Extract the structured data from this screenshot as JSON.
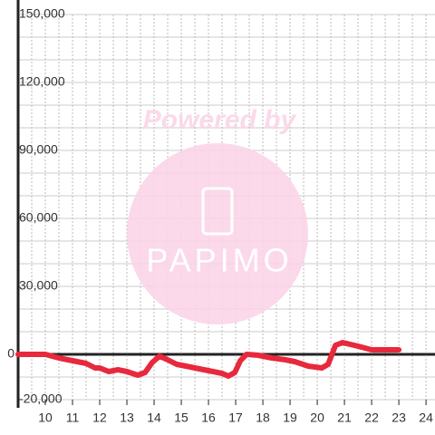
{
  "chart_data": {
    "type": "line",
    "annotations": [
      "Powered by",
      "PAPIMO"
    ],
    "x": [
      9,
      10,
      10.5,
      11,
      11.5,
      11.83,
      12,
      12.33,
      12.67,
      13,
      13.4,
      13.67,
      13.93,
      14.2,
      14.5,
      14.83,
      15.17,
      15.5,
      15.83,
      16.17,
      16.5,
      16.73,
      16.97,
      17.17,
      17.4,
      17.83,
      18.33,
      18.83,
      19.17,
      19.67,
      20.17,
      20.4,
      20.67,
      20.93,
      21.5,
      22,
      23
    ],
    "series": [
      {
        "color": "#e8283c",
        "values": [
          0,
          0,
          -1600,
          -2800,
          -4000,
          -6000,
          -6000,
          -7600,
          -6800,
          -7600,
          -9200,
          -8000,
          -3600,
          -800,
          -2400,
          -4400,
          -5200,
          -6000,
          -6800,
          -7600,
          -8400,
          -9600,
          -8000,
          -2800,
          0,
          -400,
          -1600,
          -2400,
          -3200,
          -5200,
          -6000,
          -4400,
          4000,
          5200,
          3600,
          2000,
          2000
        ]
      }
    ],
    "xlim": [
      9,
      24.33
    ],
    "xticks": [
      10,
      11,
      12,
      13,
      14,
      15,
      16,
      17,
      18,
      19,
      20,
      21,
      22,
      23,
      24
    ],
    "xticks_minor": [
      9.5,
      10.5,
      11.5,
      12.5,
      13.5,
      14.5,
      15.5,
      16.5,
      17.5,
      18.5,
      19.5,
      20.5,
      21.5,
      22.5,
      23.5
    ],
    "ylim": [
      -20000,
      150000
    ],
    "yticks": [
      {
        "value": -20000,
        "label": "-20,000"
      },
      0,
      {
        "value": 30000,
        "label": "30,000"
      },
      {
        "value": 60000,
        "label": "60,000"
      },
      {
        "value": 90000,
        "label": "90,000"
      },
      {
        "value": 120000,
        "label": "120,000"
      },
      {
        "value": 150000,
        "label": "150,000"
      }
    ],
    "yticks_minor": [
      -10000,
      10000,
      20000,
      40000,
      50000,
      70000,
      80000,
      100000,
      110000,
      130000,
      140000
    ],
    "grid": true
  }
}
